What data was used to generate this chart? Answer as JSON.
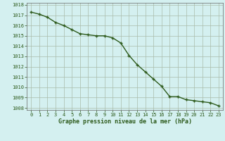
{
  "x": [
    0,
    1,
    2,
    3,
    4,
    5,
    6,
    7,
    8,
    9,
    10,
    11,
    12,
    13,
    14,
    15,
    16,
    17,
    18,
    19,
    20,
    21,
    22,
    23
  ],
  "y": [
    1017.3,
    1017.1,
    1016.8,
    1016.3,
    1016.0,
    1015.6,
    1015.2,
    1015.1,
    1015.0,
    1015.0,
    1014.8,
    1014.3,
    1013.1,
    1012.2,
    1011.5,
    1010.8,
    1010.1,
    1009.1,
    1009.1,
    1008.8,
    1008.7,
    1008.6,
    1008.5,
    1008.2
  ],
  "line_color": "#2d5a1b",
  "marker": "+",
  "marker_size": 3.5,
  "marker_linewidth": 1.0,
  "bg_color": "#d4f0f0",
  "grid_color_major": "#aabbaa",
  "grid_color_minor": "#ccddcc",
  "ylabel_values": [
    1008,
    1009,
    1010,
    1011,
    1012,
    1013,
    1014,
    1015,
    1016,
    1017,
    1018
  ],
  "ylim_min": 1007.8,
  "ylim_max": 1018.2,
  "xlim_min": -0.5,
  "xlim_max": 23.5,
  "xlabel": "Graphe pression niveau de la mer (hPa)",
  "line_dark_color": "#2d5a1b",
  "tick_label_color": "#2d5a1b",
  "linewidth": 1.0,
  "tick_fontsize": 5.0,
  "xlabel_fontsize": 6.0
}
